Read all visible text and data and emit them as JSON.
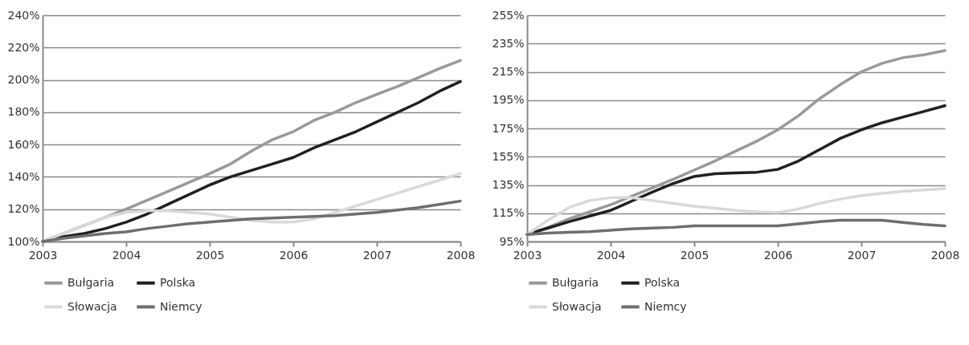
{
  "chart_data": [
    {
      "type": "line",
      "x": [
        2003,
        2003.25,
        2003.5,
        2003.75,
        2004,
        2004.25,
        2004.5,
        2004.75,
        2005,
        2005.25,
        2005.5,
        2005.75,
        2006,
        2006.25,
        2006.5,
        2006.75,
        2007,
        2007.25,
        2007.5,
        2007.75,
        2008
      ],
      "xlim": [
        2003,
        2008
      ],
      "xticks": [
        2003,
        2004,
        2005,
        2006,
        2007,
        2008
      ],
      "ylim": [
        100,
        240
      ],
      "yticks": [
        {
          "value": 100,
          "label": "100%"
        },
        {
          "value": 120,
          "label": "120%"
        },
        {
          "value": 140,
          "label": "140%"
        },
        {
          "value": 160,
          "label": "160%"
        },
        {
          "value": 180,
          "label": "180%"
        },
        {
          "value": 200,
          "label": "200%"
        },
        {
          "value": 220,
          "label": "220%"
        },
        {
          "value": 240,
          "label": "240%"
        }
      ],
      "grid": "y",
      "legend": "bottom",
      "series": [
        {
          "name": "Bułgaria",
          "color": "#999999",
          "values": [
            100,
            105,
            110,
            115,
            120,
            125.5,
            131,
            136.5,
            142,
            148,
            156,
            163,
            168,
            175,
            180,
            186,
            191,
            196,
            201.5,
            207,
            212
          ]
        },
        {
          "name": "Polska",
          "color": "#231f20",
          "values": [
            100,
            103,
            105,
            108,
            112,
            117,
            123,
            129,
            135,
            140,
            144,
            148,
            152,
            158,
            163,
            168,
            174,
            180,
            186,
            193,
            199
          ]
        },
        {
          "name": "Słowacja",
          "color": "#d9d9d9",
          "values": [
            100,
            105,
            110,
            115,
            118,
            119,
            119,
            118,
            117,
            115,
            113,
            112,
            112,
            114,
            118,
            122,
            126,
            130,
            134,
            138,
            142
          ]
        },
        {
          "name": "Niemcy",
          "color": "#6d6e71",
          "values": [
            100,
            102,
            103.5,
            105,
            106,
            108,
            109.5,
            111,
            112,
            113,
            114,
            114.5,
            115,
            115.5,
            116,
            117,
            118,
            119.5,
            121,
            123,
            125
          ]
        }
      ]
    },
    {
      "type": "line",
      "x": [
        2003,
        2003.25,
        2003.5,
        2003.75,
        2004,
        2004.25,
        2004.5,
        2004.75,
        2005,
        2005.25,
        2005.5,
        2005.75,
        2006,
        2006.25,
        2006.5,
        2006.75,
        2007,
        2007.25,
        2007.5,
        2007.75,
        2008
      ],
      "xlim": [
        2003,
        2008
      ],
      "xticks": [
        2003,
        2004,
        2005,
        2006,
        2007,
        2008
      ],
      "ylim": [
        95,
        255
      ],
      "yticks": [
        {
          "value": 95,
          "label": "95%"
        },
        {
          "value": 115,
          "label": "115%"
        },
        {
          "value": 135,
          "label": "135%"
        },
        {
          "value": 155,
          "label": "155%"
        },
        {
          "value": 175,
          "label": "175%"
        },
        {
          "value": 195,
          "label": "195%"
        },
        {
          "value": 215,
          "label": "215%"
        },
        {
          "value": 235,
          "label": "235%"
        },
        {
          "value": 255,
          "label": "255%"
        }
      ],
      "grid": "y",
      "legend": "bottom",
      "series": [
        {
          "name": "Bułgaria",
          "color": "#999999",
          "values": [
            100,
            105,
            111,
            116,
            121,
            127,
            133,
            139,
            145.5,
            152,
            159,
            166,
            174,
            184,
            196,
            206,
            215,
            221,
            225,
            227,
            230
          ]
        },
        {
          "name": "Polska",
          "color": "#231f20",
          "values": [
            100,
            104.5,
            109,
            113,
            117,
            123.5,
            130,
            136,
            141,
            143,
            143.5,
            144,
            146,
            152,
            160,
            168,
            174,
            179,
            183,
            187,
            191
          ]
        },
        {
          "name": "Słowacja",
          "color": "#d9d9d9",
          "values": [
            100,
            110,
            119,
            124,
            126,
            126,
            124,
            122,
            120,
            118.5,
            117,
            116,
            115.5,
            118,
            122,
            125,
            127.5,
            129,
            130.5,
            131.5,
            132.5
          ]
        },
        {
          "name": "Niemcy",
          "color": "#6d6e71",
          "values": [
            100,
            101,
            101.5,
            102,
            103,
            104,
            104.5,
            105,
            106,
            106,
            106,
            106,
            106,
            107.5,
            109,
            110,
            110,
            110,
            108.5,
            107,
            106
          ]
        }
      ]
    }
  ]
}
